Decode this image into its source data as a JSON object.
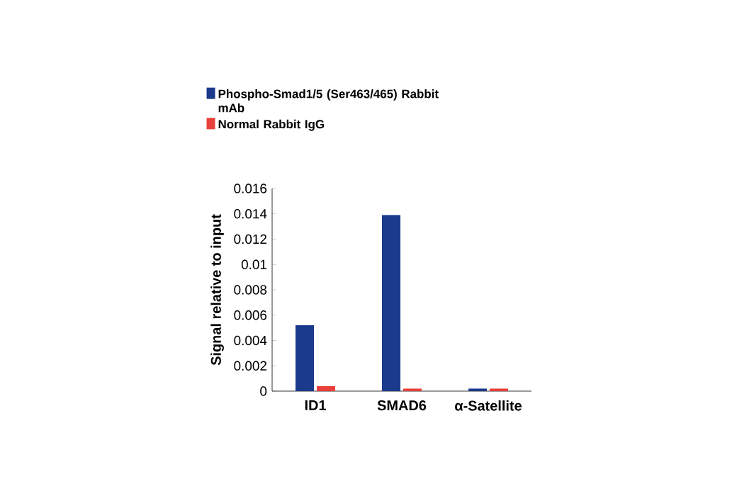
{
  "chart_data": {
    "type": "bar",
    "ylabel": "Signal relative to input",
    "categories": [
      "ID1",
      "SMAD6",
      "α-Satellite"
    ],
    "series": [
      {
        "name": "Phospho-Smad1/5 (Ser463/465) Rabbit mAb",
        "color": "#1b3a8c",
        "values": [
          0.0052,
          0.0139,
          0.0002
        ]
      },
      {
        "name": "Normal Rabbit IgG",
        "color": "#e8403a",
        "values": [
          0.0004,
          0.0002,
          0.0002
        ]
      }
    ],
    "ylim": [
      0,
      0.016
    ],
    "yticks": [
      0,
      0.002,
      0.004,
      0.006,
      0.008,
      0.01,
      0.012,
      0.014,
      0.016
    ],
    "legend": "top",
    "grid": false
  }
}
